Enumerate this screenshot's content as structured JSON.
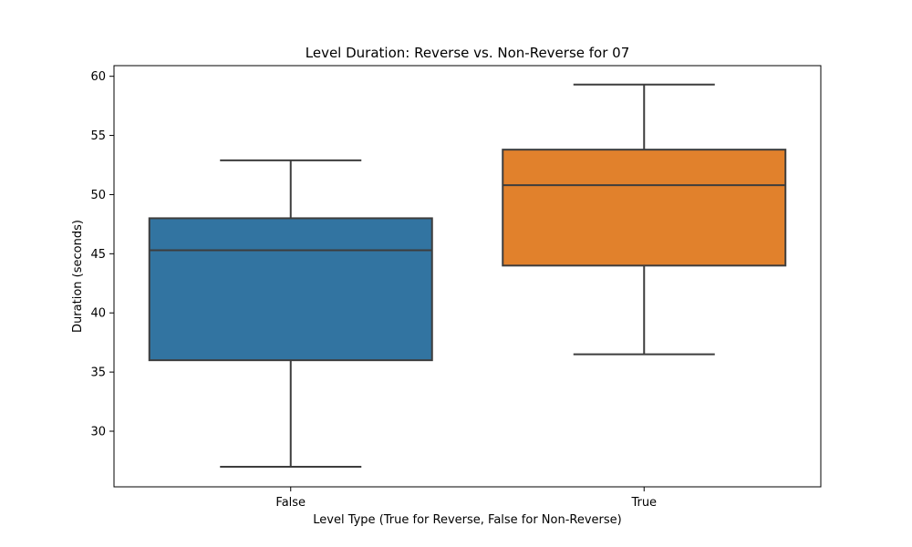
{
  "chart_data": {
    "type": "box",
    "title": "Level Duration: Reverse vs. Non-Reverse for 07",
    "xlabel": "Level Type (True for Reverse, False for Non-Reverse)",
    "ylabel": "Duration (seconds)",
    "categories": [
      "False",
      "True"
    ],
    "boxes": [
      {
        "category": "False",
        "whisker_low": 27.0,
        "q1": 36.0,
        "median": 45.3,
        "q3": 48.0,
        "whisker_high": 52.9,
        "color": "#3274a1"
      },
      {
        "category": "True",
        "whisker_low": 36.5,
        "q1": 44.0,
        "median": 50.8,
        "q3": 53.8,
        "whisker_high": 59.3,
        "color": "#e1812c"
      }
    ],
    "ylim": [
      25.3,
      60.9
    ],
    "yticks": [
      30,
      35,
      40,
      45,
      50,
      55,
      60
    ],
    "grid": false,
    "legend": "none",
    "line_color": "#3d3d3d"
  }
}
